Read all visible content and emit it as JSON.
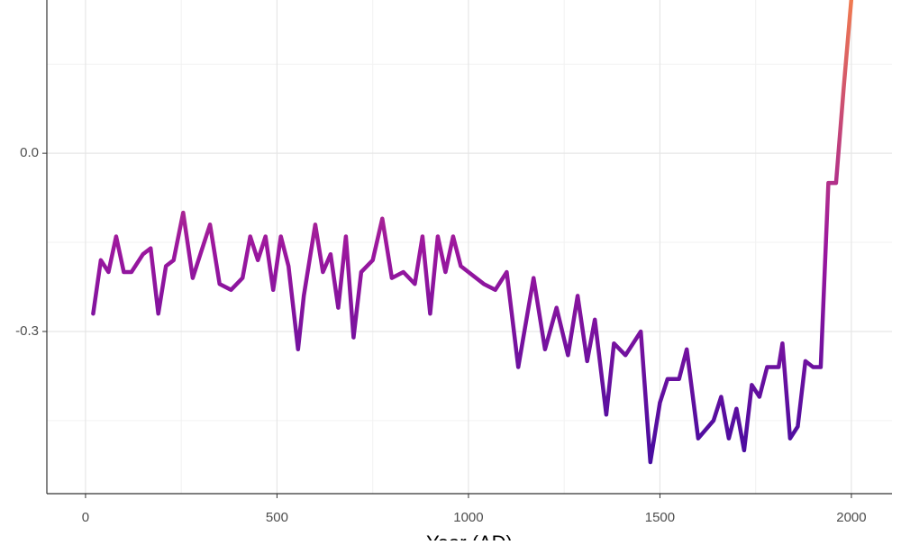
{
  "chart_data": {
    "type": "line",
    "xlabel": "Year (AD)",
    "x": [
      20,
      40,
      60,
      80,
      100,
      120,
      150,
      170,
      190,
      210,
      230,
      255,
      280,
      300,
      325,
      350,
      380,
      410,
      430,
      450,
      470,
      490,
      510,
      530,
      555,
      570,
      600,
      620,
      640,
      660,
      680,
      700,
      720,
      750,
      775,
      800,
      830,
      860,
      880,
      900,
      920,
      940,
      960,
      980,
      1000,
      1040,
      1070,
      1100,
      1130,
      1170,
      1200,
      1230,
      1260,
      1285,
      1310,
      1330,
      1360,
      1380,
      1410,
      1450,
      1475,
      1500,
      1520,
      1550,
      1570,
      1600,
      1640,
      1660,
      1680,
      1700,
      1720,
      1740,
      1760,
      1780,
      1810,
      1820,
      1840,
      1860,
      1880,
      1900,
      1920,
      1940,
      1960,
      1980,
      2000
    ],
    "values": [
      -0.27,
      -0.18,
      -0.2,
      -0.14,
      -0.2,
      -0.2,
      -0.17,
      -0.16,
      -0.27,
      -0.19,
      -0.18,
      -0.1,
      -0.21,
      -0.17,
      -0.12,
      -0.22,
      -0.23,
      -0.21,
      -0.14,
      -0.18,
      -0.14,
      -0.23,
      -0.14,
      -0.19,
      -0.33,
      -0.24,
      -0.12,
      -0.2,
      -0.17,
      -0.26,
      -0.14,
      -0.31,
      -0.2,
      -0.18,
      -0.11,
      -0.21,
      -0.2,
      -0.22,
      -0.14,
      -0.27,
      -0.14,
      -0.2,
      -0.14,
      -0.19,
      -0.2,
      -0.22,
      -0.23,
      -0.2,
      -0.36,
      -0.21,
      -0.33,
      -0.26,
      -0.34,
      -0.24,
      -0.35,
      -0.28,
      -0.44,
      -0.32,
      -0.34,
      -0.3,
      -0.52,
      -0.42,
      -0.38,
      -0.38,
      -0.33,
      -0.48,
      -0.45,
      -0.41,
      -0.48,
      -0.43,
      -0.5,
      -0.39,
      -0.41,
      -0.36,
      -0.36,
      -0.32,
      -0.48,
      -0.46,
      -0.35,
      -0.36,
      -0.36,
      -0.05,
      -0.05,
      0.11,
      0.26
    ],
    "color_scale": [
      "#3a0aa0",
      "#9c179e",
      "#f07a50"
    ],
    "xlim": [
      -101,
      2106
    ],
    "ylim": [
      -0.573,
      0.258
    ],
    "xticks": [
      0,
      500,
      1000,
      1500,
      2000
    ],
    "xminor": [
      250,
      750,
      1250,
      1750
    ],
    "yticks": [
      {
        "value": 0,
        "label": "0.0"
      },
      {
        "value": -0.3,
        "label": "-0.3"
      }
    ],
    "yminor": [
      -0.45,
      -0.15,
      0.15
    ],
    "grid": true
  }
}
